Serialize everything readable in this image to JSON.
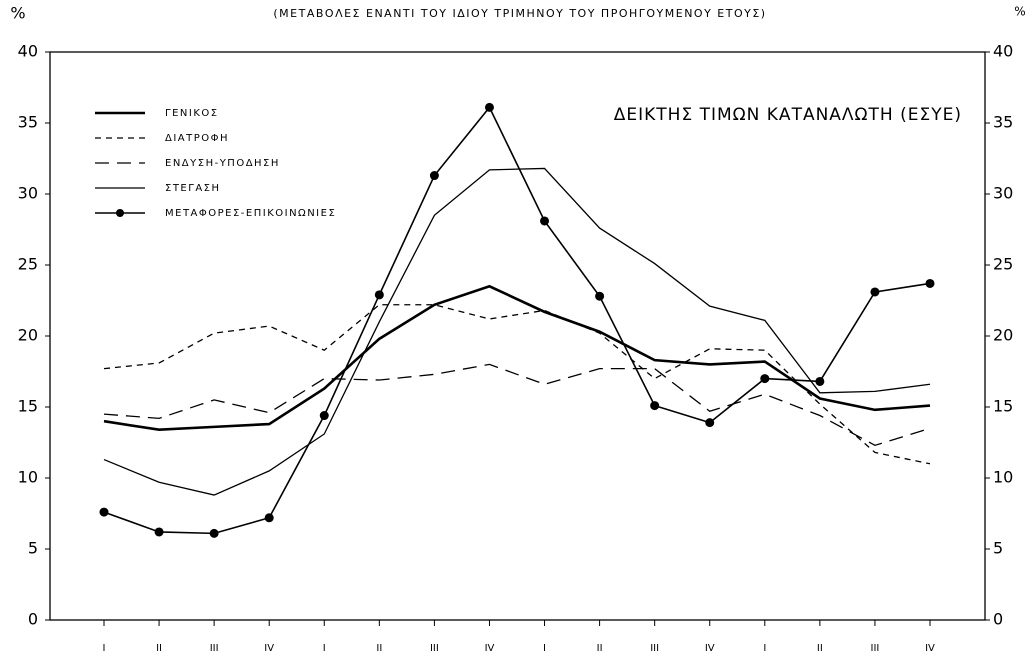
{
  "chart_data": {
    "type": "line",
    "title": "(ΜΕΤΑΒΟΛΕΣ ΕΝΑΝΤΙ ΤΟΥ ΙΔΙΟΥ ΤΡΙΜΗΝΟΥ ΤΟΥ ΠΡΟΗΓΟΥΜΕΝΟΥ ΕΤΟΥΣ)",
    "annotation": "ΔΕΙΚΤΗΣ ΤΙΜΩΝ ΚΑΤΑΝΑΛΩΤΗ (ΕΣΥΕ)",
    "y_label": "%",
    "y2_label": "%",
    "categories": [
      "I",
      "II",
      "III",
      "IV",
      "I",
      "II",
      "III",
      "IV",
      "I",
      "II",
      "III",
      "IV",
      "I",
      "II",
      "III",
      "IV"
    ],
    "ylim": [
      0,
      40
    ],
    "yticks": [
      0,
      5,
      10,
      15,
      20,
      25,
      30,
      35,
      40
    ],
    "y2lim": [
      0,
      40
    ],
    "y2ticks": [
      0,
      5,
      10,
      15,
      20,
      25,
      30,
      35,
      40
    ],
    "legend": "upper left",
    "series": [
      {
        "name": "ΓΕΝΙΚΟΣ",
        "color": "#000000",
        "dash": "solid",
        "width": 2.6,
        "marker": false,
        "values": [
          14.0,
          13.4,
          13.6,
          13.8,
          16.3,
          19.8,
          22.2,
          23.5,
          21.7,
          20.3,
          18.3,
          18.0,
          18.2,
          15.6,
          14.8,
          15.1
        ]
      },
      {
        "name": "ΔΙΑΤΡΟΦΗ",
        "color": "#000000",
        "dash": "short",
        "width": 1.3,
        "marker": false,
        "values": [
          17.7,
          18.1,
          20.2,
          20.7,
          19.0,
          22.2,
          22.2,
          21.2,
          21.8,
          20.2,
          17.0,
          19.1,
          19.0,
          15.2,
          11.8,
          11.0
        ]
      },
      {
        "name": "ΕΝΔΥΣΗ-ΥΠΟΔΗΣΗ",
        "color": "#000000",
        "dash": "long",
        "width": 1.3,
        "marker": false,
        "values": [
          14.5,
          14.2,
          15.5,
          14.6,
          17.0,
          16.9,
          17.3,
          18.0,
          16.6,
          17.7,
          17.7,
          14.7,
          15.9,
          14.4,
          12.3,
          13.5
        ]
      },
      {
        "name": "ΣΤΕΓΑΣΗ",
        "color": "#000000",
        "dash": "solid",
        "width": 1.3,
        "marker": false,
        "values": [
          11.3,
          9.7,
          8.8,
          10.5,
          13.1,
          21.0,
          28.5,
          31.7,
          31.8,
          27.6,
          25.1,
          22.1,
          21.1,
          16.0,
          16.1,
          16.6
        ]
      },
      {
        "name": "ΜΕΤΑΦΟΡΕΣ-ΕΠΙΚΟΙΝΩΝΙΕΣ",
        "color": "#000000",
        "dash": "solid",
        "width": 1.6,
        "marker": true,
        "values": [
          7.6,
          6.2,
          6.1,
          7.2,
          14.4,
          22.9,
          31.3,
          36.1,
          28.1,
          22.8,
          15.1,
          13.9,
          17.0,
          16.8,
          23.1,
          23.7
        ]
      }
    ]
  }
}
